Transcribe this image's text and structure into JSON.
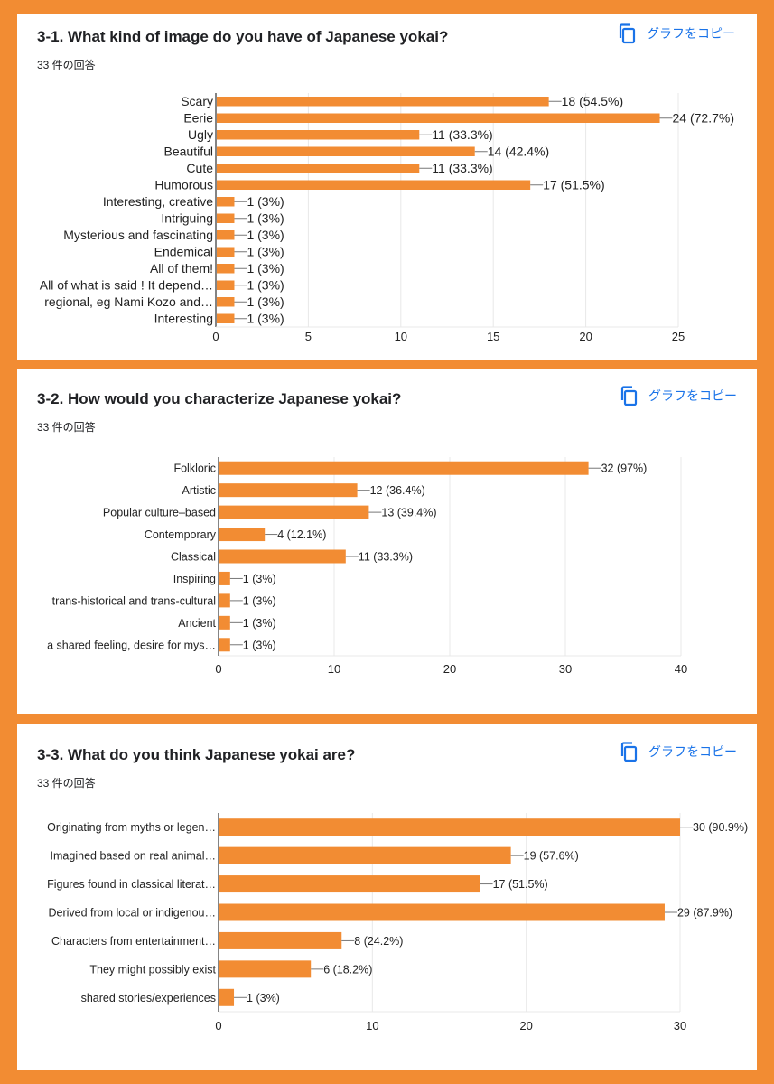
{
  "copy_label": "グラフをコピー",
  "colors": {
    "bar": "#f28c33",
    "grid": "#e8e8e8",
    "axis": "#333333",
    "link": "#1a73e8"
  },
  "chart_data": [
    {
      "type": "bar",
      "orientation": "horizontal",
      "title": "3-1. What kind of image do you have of Japanese yokai?",
      "subtitle": "33 件の回答",
      "categories": [
        "Scary",
        "Eerie",
        "Ugly",
        "Beautiful",
        "Cute",
        "Humorous",
        "Interesting, creative",
        "Intriguing",
        "Mysterious and fascinating",
        "Endemical",
        "All of them!",
        "All of what is said ! It depend…",
        "regional, eg Nami Kozo and…",
        "Interesting"
      ],
      "values": [
        18,
        24,
        11,
        14,
        11,
        17,
        1,
        1,
        1,
        1,
        1,
        1,
        1,
        1
      ],
      "data_labels": [
        "18 (54.5%)",
        "24 (72.7%)",
        "11 (33.3%)",
        "14 (42.4%)",
        "11 (33.3%)",
        "17 (51.5%)",
        "1 (3%)",
        "1 (3%)",
        "1 (3%)",
        "1 (3%)",
        "1 (3%)",
        "1 (3%)",
        "1 (3%)",
        "1 (3%)"
      ],
      "xlim": [
        0,
        25
      ],
      "xticks": [
        0,
        5,
        10,
        15,
        20,
        25
      ],
      "grid": true
    },
    {
      "type": "bar",
      "orientation": "horizontal",
      "title": "3-2. How would you characterize Japanese yokai?",
      "subtitle": "33 件の回答",
      "categories": [
        "Folkloric",
        "Artistic",
        "Popular culture–based",
        "Contemporary",
        "Classical",
        "Inspiring",
        "trans-historical and trans-cultural",
        "Ancient",
        "a shared feeling, desire for mys…"
      ],
      "values": [
        32,
        12,
        13,
        4,
        11,
        1,
        1,
        1,
        1
      ],
      "data_labels": [
        "32 (97%)",
        "12 (36.4%)",
        "13 (39.4%)",
        "4 (12.1%)",
        "11 (33.3%)",
        "1 (3%)",
        "1 (3%)",
        "1 (3%)",
        "1 (3%)"
      ],
      "xlim": [
        0,
        40
      ],
      "xticks": [
        0,
        10,
        20,
        30,
        40
      ],
      "grid": true
    },
    {
      "type": "bar",
      "orientation": "horizontal",
      "title": "3-3. What do you think Japanese yokai are?",
      "subtitle": "33 件の回答",
      "categories": [
        "Originating from myths or legen…",
        "Imagined based on real animal…",
        "Figures found in classical literat…",
        "Derived from local or indigenou…",
        "Characters from entertainment…",
        "They might possibly exist",
        "shared stories/experiences"
      ],
      "values": [
        30,
        19,
        17,
        29,
        8,
        6,
        1
      ],
      "data_labels": [
        "30 (90.9%)",
        "19 (57.6%)",
        "17 (51.5%)",
        "29 (87.9%)",
        "8 (24.2%)",
        "6 (18.2%)",
        "1 (3%)"
      ],
      "xlim": [
        0,
        30
      ],
      "xticks": [
        0,
        10,
        20,
        30
      ],
      "grid": true
    }
  ]
}
